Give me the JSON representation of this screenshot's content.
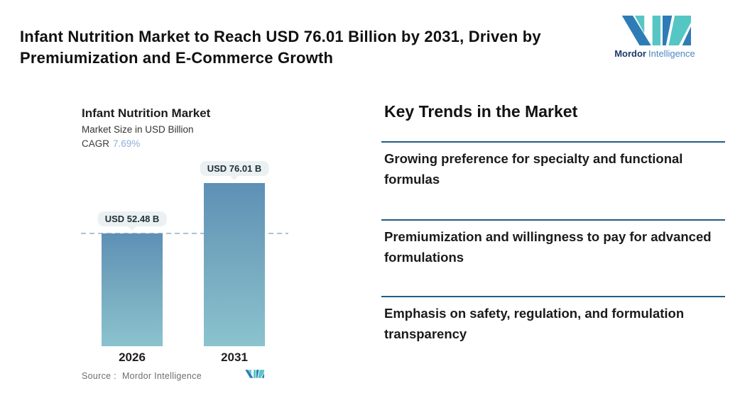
{
  "header": {
    "title": "Infant Nutrition Market to Reach USD 76.01 Billion by 2031, Driven by Premiumization and E-Commerce Growth"
  },
  "brand": {
    "primary": "Mordor",
    "secondary": "Intelligence"
  },
  "chart": {
    "title": "Infant Nutrition Market",
    "subtitle": "Market Size in USD Billion",
    "cagr_label": "CAGR",
    "cagr_value": "7.69%",
    "source_label": "Source :",
    "source_value": "Mordor Intelligence"
  },
  "chart_data": {
    "type": "bar",
    "title": "Infant Nutrition Market",
    "ylabel": "Market Size in USD Billion",
    "cagr": "7.69%",
    "categories": [
      "2026",
      "2031"
    ],
    "values": [
      52.48,
      76.01
    ],
    "bar_value_labels": [
      "USD 52.48 B",
      "USD 76.01 B"
    ],
    "baseline_dashed_at": 52.48,
    "legend": false,
    "gridlines": false,
    "bar_gradient_top": "#5E90B6",
    "bar_gradient_bottom": "#8AC3CE"
  },
  "trends": {
    "heading": "Key Trends in the Market",
    "items": [
      "Growing preference for specialty and functional formulas",
      "Premiumization and willingness to pay for advanced formulations",
      "Emphasis on safety, regulation, and formulation transparency"
    ]
  },
  "colors": {
    "accent_teal": "#56C6C4",
    "accent_blue": "#2E7CB5",
    "divider": "#215E80",
    "dashed_line": "#A9C4D8",
    "pill_background": "#EBF1F2",
    "cagr_value": "#8FAFD9",
    "source_text": "#6E6E6E"
  }
}
